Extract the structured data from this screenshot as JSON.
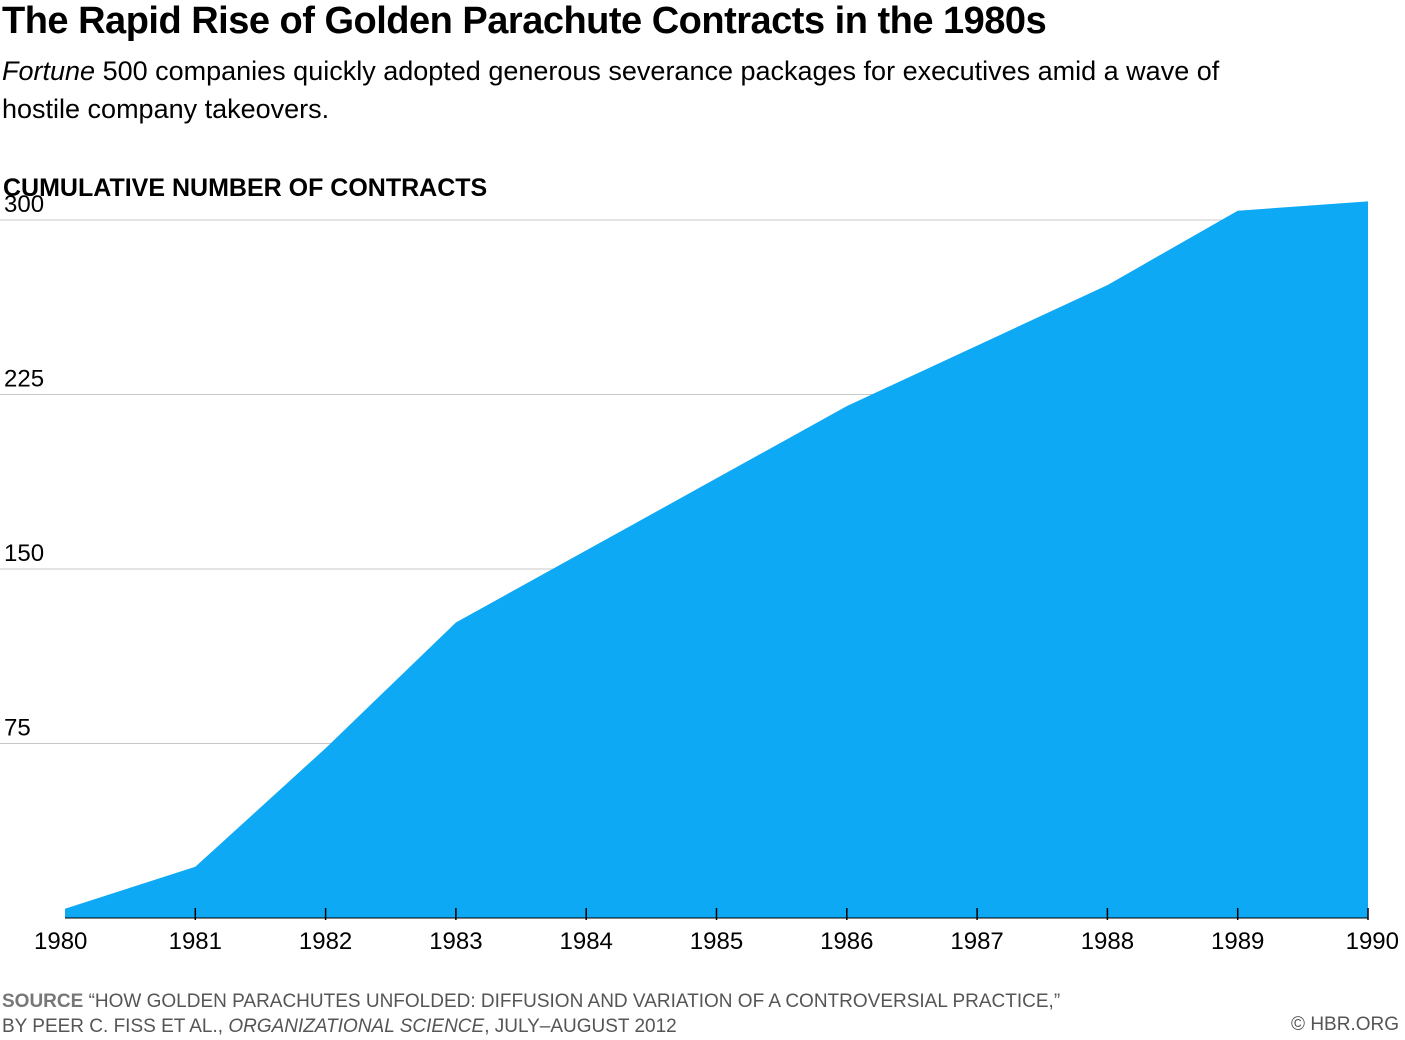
{
  "title": "The Rapid Rise of Golden Parachute Contracts in the 1980s",
  "subtitle": {
    "italic": "Fortune",
    "text": " 500 companies quickly adopted generous severance packages for executives amid a wave of hostile company takeovers."
  },
  "source": {
    "label": "SOURCE",
    "line1": " “HOW GOLDEN PARACHUTES UNFOLDED: DIFFUSION AND VARIATION OF A CONTROVERSIAL PRACTICE,”",
    "line2_pre": "BY PEER C. FISS ET AL., ",
    "line2_italic": "ORGANIZATIONAL SCIENCE",
    "line2_post": ", JULY–AUGUST 2012"
  },
  "credit": "© HBR.ORG",
  "colors": {
    "area": "#0da9f5",
    "grid": "#c8c8c8"
  },
  "chart_data": {
    "type": "area",
    "title": "The Rapid Rise of Golden Parachute Contracts in the 1980s",
    "ylabel": "CUMULATIVE NUMBER OF CONTRACTS",
    "xlabel": "",
    "x": [
      "1980",
      "1981",
      "1982",
      "1983",
      "1984",
      "1985",
      "1986",
      "1987",
      "1988",
      "1989",
      "1990"
    ],
    "values": [
      4,
      22,
      73,
      127,
      158,
      189,
      220,
      246,
      272,
      304,
      308
    ],
    "ylim": [
      0,
      300
    ],
    "yticks": [
      75,
      150,
      225,
      300
    ],
    "grid": true
  }
}
